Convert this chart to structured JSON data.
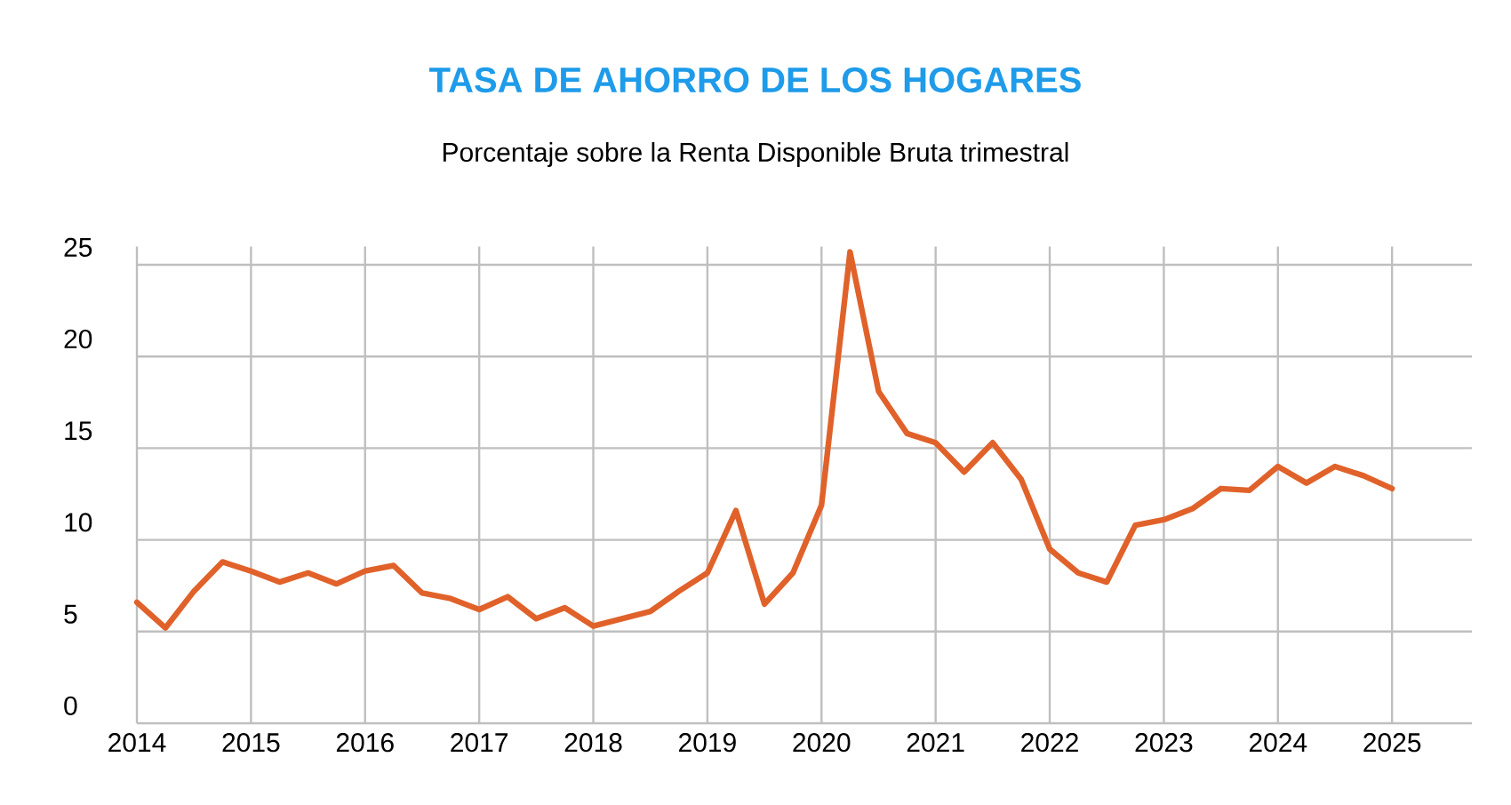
{
  "chart_data": {
    "type": "line",
    "title": "TASA DE AHORRO DE LOS HOGARES",
    "subtitle": "Porcentaje sobre la Renta Disponible Bruta trimestral",
    "x": [
      2014,
      2014.25,
      2014.5,
      2014.75,
      2015,
      2015.25,
      2015.5,
      2015.75,
      2016,
      2016.25,
      2016.5,
      2016.75,
      2017,
      2017.25,
      2017.5,
      2017.75,
      2018,
      2018.25,
      2018.5,
      2018.75,
      2019,
      2019.25,
      2019.5,
      2019.75,
      2020,
      2020.25,
      2020.5,
      2020.75,
      2021,
      2021.25,
      2021.5,
      2021.75,
      2022,
      2022.25,
      2022.5,
      2022.75,
      2023,
      2023.25,
      2023.5,
      2023.75,
      2024,
      2024.25,
      2024.5,
      2024.75,
      2025
    ],
    "series": [
      {
        "color": "#e0622a",
        "values": [
          6.6,
          5.2,
          7.2,
          8.8,
          8.3,
          7.7,
          8.2,
          7.6,
          8.3,
          8.6,
          7.1,
          6.8,
          6.2,
          6.9,
          5.7,
          6.3,
          5.3,
          5.7,
          6.1,
          7.2,
          8.2,
          11.6,
          6.5,
          8.2,
          11.9,
          25.7,
          18.1,
          15.8,
          15.3,
          13.7,
          15.3,
          13.3,
          9.5,
          8.2,
          7.7,
          10.8,
          11.1,
          11.7,
          12.8,
          12.7,
          14.0,
          13.1,
          14.0,
          13.5,
          12.8
        ]
      }
    ],
    "xlim": [
      2014,
      2025.7
    ],
    "ylim": [
      0,
      26
    ],
    "xticks": [
      2014,
      2015,
      2016,
      2017,
      2018,
      2019,
      2020,
      2021,
      2022,
      2023,
      2024,
      2025
    ],
    "yticks": [
      0,
      5,
      10,
      15,
      20,
      25
    ],
    "grid": true,
    "marker": "none",
    "line_style": "solid"
  }
}
